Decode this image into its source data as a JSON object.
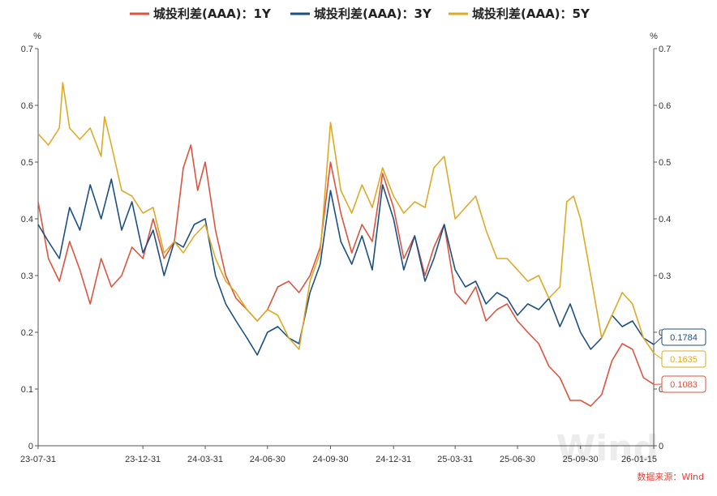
{
  "chart_data": {
    "type": "line",
    "title": "",
    "y_unit": "%",
    "ylim": [
      0,
      0.7
    ],
    "y_ticks": [
      "0",
      "0.1",
      "0.2",
      "0.3",
      "0.4",
      "0.5",
      "0.6",
      "0.7"
    ],
    "x_tick_labels": [
      "23-07-31",
      "23-12-31",
      "24-03-31",
      "24-06-30",
      "24-09-30",
      "24-12-31",
      "25-03-31",
      "25-06-30",
      "25-09-30",
      "26-01-15"
    ],
    "x_start": "23-07-31",
    "x_end": "26-01-15",
    "legend_position": "top-center",
    "grid": false,
    "source": "数据来源：Wind",
    "watermark": "Wind",
    "series": [
      {
        "name": "城投利差(AAA)：1Y",
        "color": "#d9553f",
        "end_label": "0.1083",
        "points": [
          [
            "23-07-31",
            0.43
          ],
          [
            "23-08-15",
            0.33
          ],
          [
            "23-08-31",
            0.29
          ],
          [
            "23-09-15",
            0.36
          ],
          [
            "23-09-30",
            0.31
          ],
          [
            "23-10-15",
            0.25
          ],
          [
            "23-10-31",
            0.33
          ],
          [
            "23-11-15",
            0.28
          ],
          [
            "23-11-30",
            0.3
          ],
          [
            "23-12-15",
            0.35
          ],
          [
            "23-12-31",
            0.33
          ],
          [
            "24-01-15",
            0.4
          ],
          [
            "24-01-31",
            0.33
          ],
          [
            "24-02-15",
            0.36
          ],
          [
            "24-02-28",
            0.49
          ],
          [
            "24-03-10",
            0.53
          ],
          [
            "24-03-20",
            0.45
          ],
          [
            "24-03-31",
            0.5
          ],
          [
            "24-04-15",
            0.38
          ],
          [
            "24-04-30",
            0.3
          ],
          [
            "24-05-15",
            0.26
          ],
          [
            "24-05-31",
            0.24
          ],
          [
            "24-06-15",
            0.22
          ],
          [
            "24-06-30",
            0.24
          ],
          [
            "24-07-15",
            0.28
          ],
          [
            "24-07-31",
            0.29
          ],
          [
            "24-08-15",
            0.27
          ],
          [
            "24-08-31",
            0.3
          ],
          [
            "24-09-15",
            0.35
          ],
          [
            "24-09-30",
            0.5
          ],
          [
            "24-10-15",
            0.41
          ],
          [
            "24-10-31",
            0.34
          ],
          [
            "24-11-15",
            0.39
          ],
          [
            "24-11-30",
            0.36
          ],
          [
            "24-12-15",
            0.48
          ],
          [
            "24-12-31",
            0.42
          ],
          [
            "25-01-15",
            0.33
          ],
          [
            "25-01-31",
            0.37
          ],
          [
            "25-02-15",
            0.3
          ],
          [
            "25-02-28",
            0.35
          ],
          [
            "25-03-15",
            0.39
          ],
          [
            "25-03-31",
            0.27
          ],
          [
            "25-04-15",
            0.25
          ],
          [
            "25-04-30",
            0.28
          ],
          [
            "25-05-15",
            0.22
          ],
          [
            "25-05-31",
            0.24
          ],
          [
            "25-06-15",
            0.25
          ],
          [
            "25-06-30",
            0.22
          ],
          [
            "25-07-15",
            0.2
          ],
          [
            "25-07-31",
            0.18
          ],
          [
            "25-08-15",
            0.14
          ],
          [
            "25-08-31",
            0.12
          ],
          [
            "25-09-15",
            0.08
          ],
          [
            "25-09-30",
            0.08
          ],
          [
            "25-10-15",
            0.07
          ],
          [
            "25-10-31",
            0.09
          ],
          [
            "25-11-15",
            0.15
          ],
          [
            "25-11-30",
            0.18
          ],
          [
            "25-12-15",
            0.17
          ],
          [
            "25-12-31",
            0.12
          ],
          [
            "26-01-15",
            0.1083
          ]
        ]
      },
      {
        "name": "城投利差(AAA)：3Y",
        "color": "#1c4f82",
        "end_label": "0.1784",
        "points": [
          [
            "23-07-31",
            0.39
          ],
          [
            "23-08-15",
            0.36
          ],
          [
            "23-08-31",
            0.33
          ],
          [
            "23-09-15",
            0.42
          ],
          [
            "23-09-30",
            0.38
          ],
          [
            "23-10-15",
            0.46
          ],
          [
            "23-10-31",
            0.4
          ],
          [
            "23-11-15",
            0.47
          ],
          [
            "23-11-30",
            0.38
          ],
          [
            "23-12-15",
            0.43
          ],
          [
            "23-12-31",
            0.34
          ],
          [
            "24-01-15",
            0.38
          ],
          [
            "24-01-31",
            0.3
          ],
          [
            "24-02-15",
            0.36
          ],
          [
            "24-02-28",
            0.35
          ],
          [
            "24-03-15",
            0.39
          ],
          [
            "24-03-31",
            0.4
          ],
          [
            "24-04-15",
            0.3
          ],
          [
            "24-04-30",
            0.25
          ],
          [
            "24-05-15",
            0.22
          ],
          [
            "24-05-31",
            0.19
          ],
          [
            "24-06-15",
            0.16
          ],
          [
            "24-06-30",
            0.2
          ],
          [
            "24-07-15",
            0.21
          ],
          [
            "24-07-31",
            0.19
          ],
          [
            "24-08-15",
            0.18
          ],
          [
            "24-08-31",
            0.27
          ],
          [
            "24-09-15",
            0.32
          ],
          [
            "24-09-30",
            0.45
          ],
          [
            "24-10-15",
            0.36
          ],
          [
            "24-10-31",
            0.32
          ],
          [
            "24-11-15",
            0.37
          ],
          [
            "24-11-30",
            0.31
          ],
          [
            "24-12-15",
            0.46
          ],
          [
            "24-12-31",
            0.4
          ],
          [
            "25-01-15",
            0.31
          ],
          [
            "25-01-31",
            0.37
          ],
          [
            "25-02-15",
            0.29
          ],
          [
            "25-02-28",
            0.33
          ],
          [
            "25-03-15",
            0.39
          ],
          [
            "25-03-31",
            0.31
          ],
          [
            "25-04-15",
            0.28
          ],
          [
            "25-04-30",
            0.29
          ],
          [
            "25-05-15",
            0.25
          ],
          [
            "25-05-31",
            0.27
          ],
          [
            "25-06-15",
            0.26
          ],
          [
            "25-06-30",
            0.23
          ],
          [
            "25-07-15",
            0.25
          ],
          [
            "25-07-31",
            0.24
          ],
          [
            "25-08-15",
            0.26
          ],
          [
            "25-08-31",
            0.21
          ],
          [
            "25-09-15",
            0.25
          ],
          [
            "25-09-30",
            0.2
          ],
          [
            "25-10-15",
            0.17
          ],
          [
            "25-10-31",
            0.19
          ],
          [
            "25-11-15",
            0.23
          ],
          [
            "25-11-30",
            0.21
          ],
          [
            "25-12-15",
            0.22
          ],
          [
            "25-12-31",
            0.19
          ],
          [
            "26-01-15",
            0.1784
          ]
        ]
      },
      {
        "name": "城投利差(AAA)：5Y",
        "color": "#dcaa27",
        "end_label": "0.1635",
        "points": [
          [
            "23-07-31",
            0.55
          ],
          [
            "23-08-15",
            0.53
          ],
          [
            "23-08-31",
            0.56
          ],
          [
            "23-09-05",
            0.64
          ],
          [
            "23-09-15",
            0.56
          ],
          [
            "23-09-30",
            0.54
          ],
          [
            "23-10-15",
            0.56
          ],
          [
            "23-10-31",
            0.51
          ],
          [
            "23-11-05",
            0.58
          ],
          [
            "23-11-15",
            0.53
          ],
          [
            "23-11-30",
            0.45
          ],
          [
            "23-12-15",
            0.44
          ],
          [
            "23-12-31",
            0.41
          ],
          [
            "24-01-15",
            0.42
          ],
          [
            "24-01-31",
            0.34
          ],
          [
            "24-02-15",
            0.36
          ],
          [
            "24-02-28",
            0.34
          ],
          [
            "24-03-15",
            0.37
          ],
          [
            "24-03-31",
            0.39
          ],
          [
            "24-04-15",
            0.33
          ],
          [
            "24-04-30",
            0.29
          ],
          [
            "24-05-15",
            0.27
          ],
          [
            "24-05-31",
            0.24
          ],
          [
            "24-06-15",
            0.22
          ],
          [
            "24-06-30",
            0.24
          ],
          [
            "24-07-15",
            0.23
          ],
          [
            "24-07-31",
            0.19
          ],
          [
            "24-08-15",
            0.17
          ],
          [
            "24-08-31",
            0.29
          ],
          [
            "24-09-15",
            0.34
          ],
          [
            "24-09-30",
            0.57
          ],
          [
            "24-10-15",
            0.45
          ],
          [
            "24-10-31",
            0.41
          ],
          [
            "24-11-15",
            0.46
          ],
          [
            "24-11-30",
            0.42
          ],
          [
            "24-12-15",
            0.49
          ],
          [
            "24-12-31",
            0.44
          ],
          [
            "25-01-15",
            0.41
          ],
          [
            "25-01-31",
            0.43
          ],
          [
            "25-02-15",
            0.42
          ],
          [
            "25-02-28",
            0.49
          ],
          [
            "25-03-15",
            0.51
          ],
          [
            "25-03-31",
            0.4
          ],
          [
            "25-04-15",
            0.42
          ],
          [
            "25-04-30",
            0.44
          ],
          [
            "25-05-15",
            0.38
          ],
          [
            "25-05-31",
            0.33
          ],
          [
            "25-06-15",
            0.33
          ],
          [
            "25-06-30",
            0.31
          ],
          [
            "25-07-15",
            0.29
          ],
          [
            "25-07-31",
            0.3
          ],
          [
            "25-08-15",
            0.26
          ],
          [
            "25-08-31",
            0.28
          ],
          [
            "25-09-10",
            0.43
          ],
          [
            "25-09-20",
            0.44
          ],
          [
            "25-09-30",
            0.4
          ],
          [
            "25-10-15",
            0.3
          ],
          [
            "25-10-31",
            0.19
          ],
          [
            "25-11-15",
            0.23
          ],
          [
            "25-11-30",
            0.27
          ],
          [
            "25-12-15",
            0.25
          ],
          [
            "25-12-31",
            0.19
          ],
          [
            "26-01-15",
            0.1635
          ]
        ]
      }
    ]
  }
}
